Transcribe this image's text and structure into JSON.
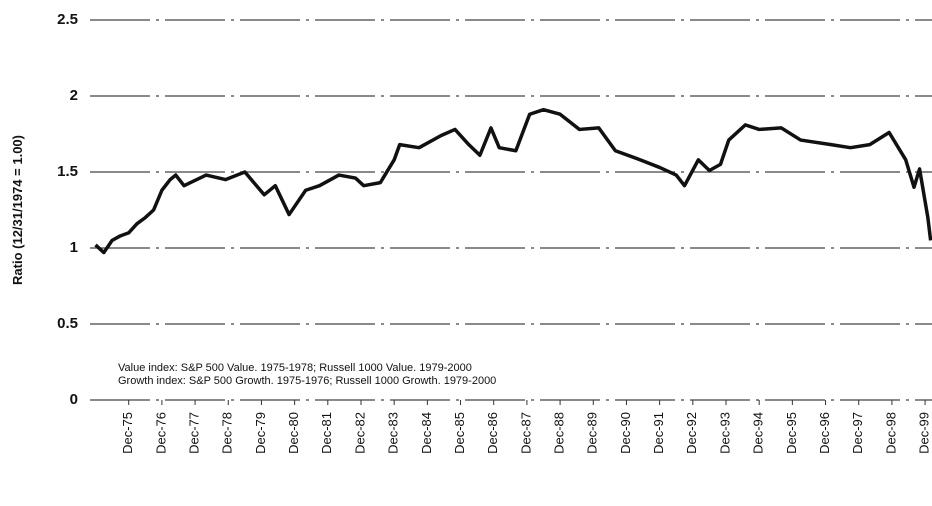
{
  "chart_data": {
    "type": "line",
    "ylabel": "Ratio (12/31/1974 = 1.00)",
    "annotations": [
      "Value index: S&P 500 Value. 1975-1978; Russell 1000 Value. 1979-2000",
      "Growth index: S&P 500 Growth. 1975-1976; Russell 1000 Growth. 1979-2000"
    ],
    "xlim": [
      -2,
      302.5
    ],
    "xticks": [
      {
        "value": 12,
        "label": "Dec-75"
      },
      {
        "value": 24,
        "label": "Dec-76"
      },
      {
        "value": 36,
        "label": "Dec-77"
      },
      {
        "value": 48,
        "label": "Dec-78"
      },
      {
        "value": 60,
        "label": "Dec-79"
      },
      {
        "value": 72,
        "label": "Dec-80"
      },
      {
        "value": 84,
        "label": "Dec-81"
      },
      {
        "value": 96,
        "label": "Dec-82"
      },
      {
        "value": 108,
        "label": "Dec-83"
      },
      {
        "value": 120,
        "label": "Dec-84"
      },
      {
        "value": 132,
        "label": "Dec-85"
      },
      {
        "value": 144,
        "label": "Dec-86"
      },
      {
        "value": 156,
        "label": "Dec-87"
      },
      {
        "value": 168,
        "label": "Dec-88"
      },
      {
        "value": 180,
        "label": "Dec-89"
      },
      {
        "value": 192,
        "label": "Dec-90"
      },
      {
        "value": 204,
        "label": "Dec-91"
      },
      {
        "value": 216,
        "label": "Dec-92"
      },
      {
        "value": 228,
        "label": "Dec-93"
      },
      {
        "value": 240,
        "label": "Dec-94"
      },
      {
        "value": 252,
        "label": "Dec-95"
      },
      {
        "value": 264,
        "label": "Dec-96"
      },
      {
        "value": 276,
        "label": "Dec-97"
      },
      {
        "value": 288,
        "label": "Dec-98"
      },
      {
        "value": 300,
        "label": "Dec-99"
      }
    ],
    "ylim": [
      0,
      2.5
    ],
    "yticks": [
      0,
      0.5,
      1,
      1.5,
      2,
      2.5
    ],
    "grid": true,
    "series": [
      {
        "color": "#111111",
        "x": [
          0,
          3,
          6,
          9,
          12,
          15,
          18,
          21,
          24,
          27,
          29,
          32,
          40,
          47,
          54,
          61,
          65,
          70,
          76,
          81,
          88,
          94,
          97,
          103,
          108,
          110,
          117,
          125,
          130,
          135,
          139,
          143,
          146,
          152,
          157,
          162,
          168,
          175,
          182,
          188,
          197,
          204,
          210,
          213,
          218,
          222,
          226,
          229,
          235,
          240,
          248,
          255,
          266,
          273,
          280,
          287,
          293,
          296,
          298,
          301,
          302
        ],
        "values": [
          1.02,
          0.97,
          1.05,
          1.08,
          1.1,
          1.16,
          1.2,
          1.25,
          1.38,
          1.45,
          1.48,
          1.41,
          1.48,
          1.45,
          1.5,
          1.35,
          1.41,
          1.22,
          1.38,
          1.41,
          1.48,
          1.46,
          1.41,
          1.43,
          1.58,
          1.68,
          1.66,
          1.74,
          1.78,
          1.68,
          1.61,
          1.79,
          1.66,
          1.64,
          1.88,
          1.91,
          1.88,
          1.78,
          1.79,
          1.64,
          1.58,
          1.53,
          1.48,
          1.41,
          1.58,
          1.51,
          1.55,
          1.71,
          1.81,
          1.78,
          1.79,
          1.71,
          1.68,
          1.66,
          1.68,
          1.76,
          1.58,
          1.4,
          1.52,
          1.2,
          1.05
        ]
      }
    ]
  }
}
